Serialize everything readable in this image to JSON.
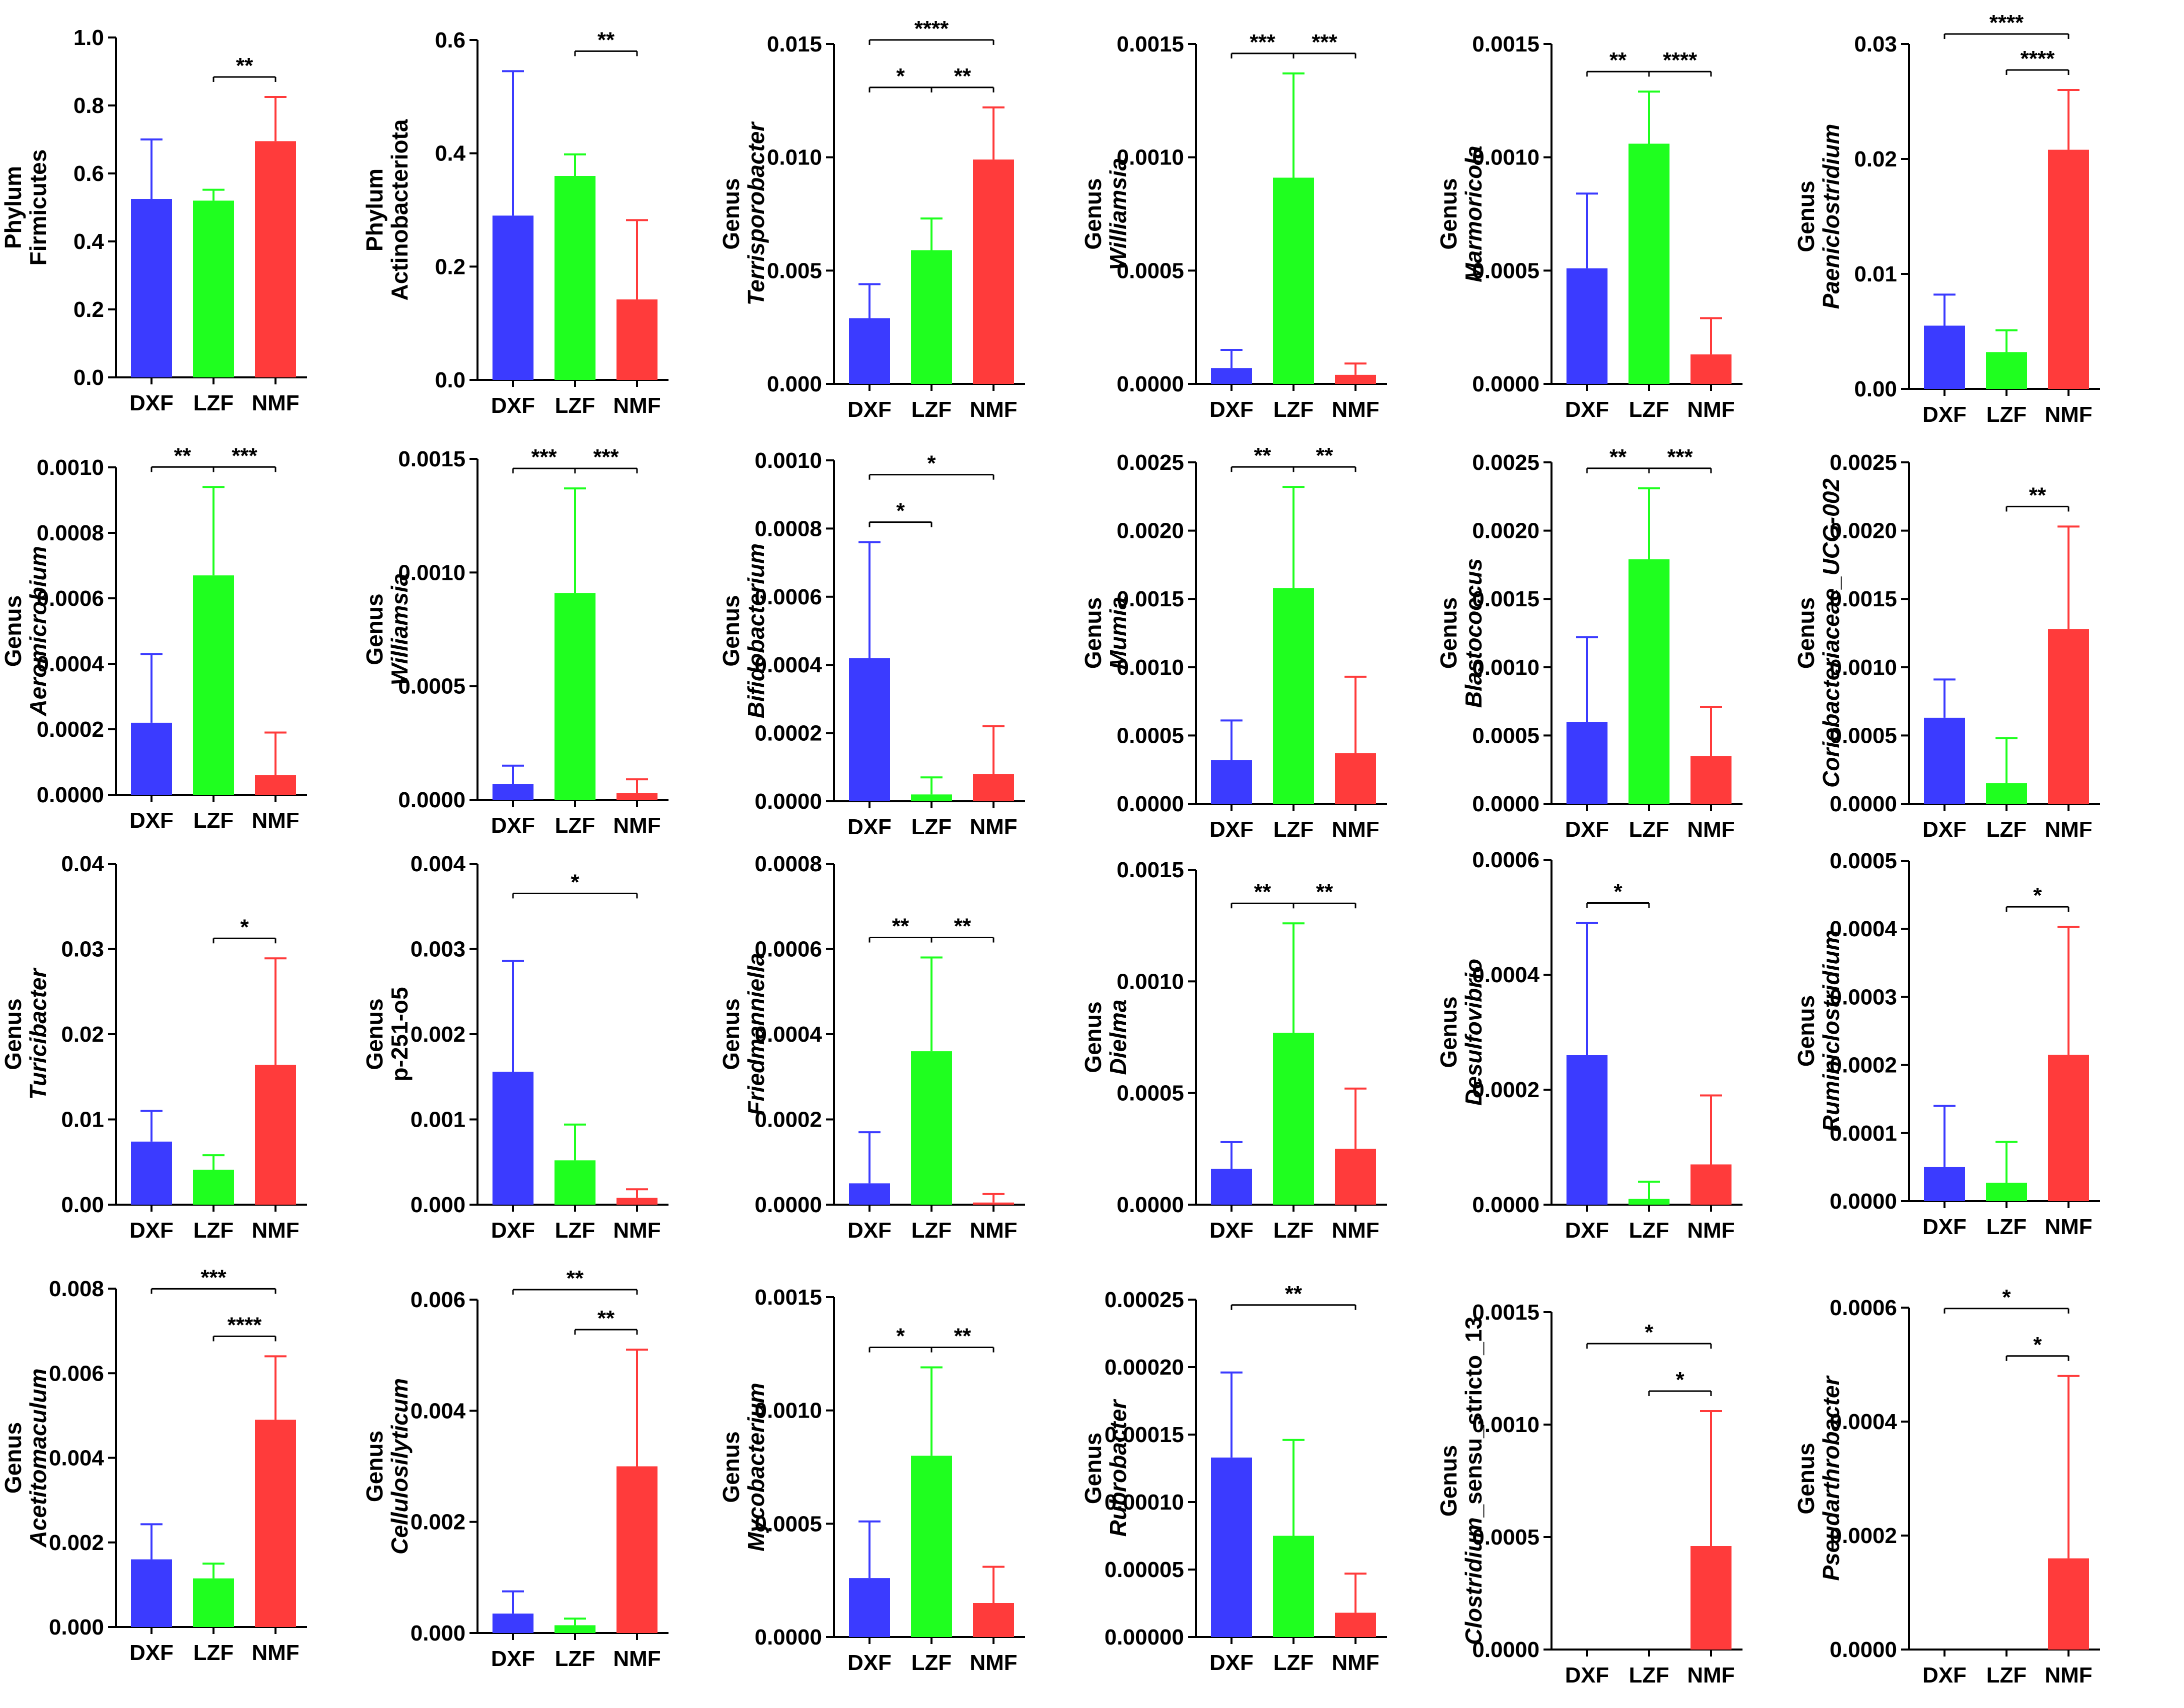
{
  "colors": {
    "DXF": "#3b3bff",
    "LZF": "#1fff1f",
    "NMF": "#ff3b3b",
    "axis": "#000000"
  },
  "chart_data": [
    {
      "type": "bar",
      "ylabel_prefix": "Phylum",
      "ylabel_main": "Firmicutes",
      "ylabel_main_italic": false,
      "categories": [
        "DXF",
        "LZF",
        "NMF"
      ],
      "values": [
        0.525,
        0.52,
        0.695
      ],
      "errors": [
        0.175,
        0.032,
        0.13
      ],
      "ylim": [
        0,
        1.0
      ],
      "ticks": [
        "0.0",
        "0.2",
        "0.4",
        "0.6",
        "0.8",
        "1.0"
      ],
      "sig": [
        {
          "from": 1,
          "to": 2,
          "label": "**"
        }
      ]
    },
    {
      "type": "bar",
      "ylabel_prefix": "Phylum",
      "ylabel_main": "Actinobacteriota",
      "ylabel_main_italic": false,
      "categories": [
        "DXF",
        "LZF",
        "NMF"
      ],
      "values": [
        0.29,
        0.36,
        0.142
      ],
      "errors": [
        0.255,
        0.038,
        0.14
      ],
      "ylim": [
        0,
        0.6
      ],
      "ticks": [
        "0.0",
        "0.2",
        "0.4",
        "0.6"
      ],
      "sig": [
        {
          "from": 1,
          "to": 2,
          "label": "**"
        }
      ]
    },
    {
      "type": "bar",
      "ylabel_prefix": "Genus",
      "ylabel_main": "Terrisporobacter",
      "ylabel_main_italic": true,
      "categories": [
        "DXF",
        "LZF",
        "NMF"
      ],
      "values": [
        0.0029,
        0.0059,
        0.0099
      ],
      "errors": [
        0.0015,
        0.0014,
        0.0023
      ],
      "ylim": [
        0,
        0.015
      ],
      "ticks": [
        "0.000",
        "0.005",
        "0.010",
        "0.015"
      ],
      "sig": [
        {
          "from": 0,
          "to": 1,
          "label": "*"
        },
        {
          "from": 1,
          "to": 2,
          "label": "**"
        },
        {
          "from": 0,
          "to": 2,
          "label": "****"
        }
      ]
    },
    {
      "type": "bar",
      "ylabel_prefix": "Genus",
      "ylabel_main": "Williamsia",
      "ylabel_main_italic": true,
      "categories": [
        "DXF",
        "LZF",
        "NMF"
      ],
      "values": [
        7e-05,
        0.00091,
        4e-05
      ],
      "errors": [
        8e-05,
        0.00046,
        5e-05
      ],
      "ylim": [
        0,
        0.0015
      ],
      "ticks": [
        "0.0000",
        "0.0005",
        "0.0010",
        "0.0015"
      ],
      "sig": [
        {
          "from": 0,
          "to": 1,
          "label": "***"
        },
        {
          "from": 1,
          "to": 2,
          "label": "***"
        }
      ]
    },
    {
      "type": "bar",
      "ylabel_prefix": "Genus",
      "ylabel_main": "Marmoricola",
      "ylabel_main_italic": true,
      "categories": [
        "DXF",
        "LZF",
        "NMF"
      ],
      "values": [
        0.00051,
        0.00106,
        0.00013
      ],
      "errors": [
        0.00033,
        0.00023,
        0.00016
      ],
      "ylim": [
        0,
        0.0015
      ],
      "ticks": [
        "0.0000",
        "0.0005",
        "0.0010",
        "0.0015"
      ],
      "sig": [
        {
          "from": 0,
          "to": 1,
          "label": "**"
        },
        {
          "from": 1,
          "to": 2,
          "label": "****"
        }
      ]
    },
    {
      "type": "bar",
      "ylabel_prefix": "Genus",
      "ylabel_main": "Paeniclostridium",
      "ylabel_main_italic": true,
      "categories": [
        "DXF",
        "LZF",
        "NMF"
      ],
      "values": [
        0.0055,
        0.0032,
        0.0208
      ],
      "errors": [
        0.0027,
        0.0019,
        0.0052
      ],
      "ylim": [
        0,
        0.03
      ],
      "ticks": [
        "0.00",
        "0.01",
        "0.02",
        "0.03"
      ],
      "sig": [
        {
          "from": 1,
          "to": 2,
          "label": "****"
        },
        {
          "from": 0,
          "to": 2,
          "label": "****"
        }
      ]
    },
    {
      "type": "bar",
      "ylabel_prefix": "Genus",
      "ylabel_main": "Aeromicrobium",
      "ylabel_main_italic": true,
      "categories": [
        "DXF",
        "LZF",
        "NMF"
      ],
      "values": [
        0.00022,
        0.00067,
        6e-05
      ],
      "errors": [
        0.00021,
        0.00027,
        0.00013
      ],
      "ylim": [
        0,
        0.001
      ],
      "ticks": [
        "0.0000",
        "0.0002",
        "0.0004",
        "0.0006",
        "0.0008",
        "0.0010"
      ],
      "sig": [
        {
          "from": 0,
          "to": 1,
          "label": "**"
        },
        {
          "from": 1,
          "to": 2,
          "label": "***"
        }
      ]
    },
    {
      "type": "bar",
      "ylabel_prefix": "Genus",
      "ylabel_main": "Williamsia",
      "ylabel_main_italic": true,
      "categories": [
        "DXF",
        "LZF",
        "NMF"
      ],
      "values": [
        7e-05,
        0.00091,
        3e-05
      ],
      "errors": [
        8e-05,
        0.00046,
        6e-05
      ],
      "ylim": [
        0,
        0.0015
      ],
      "ticks": [
        "0.0000",
        "0.0005",
        "0.0010",
        "0.0015"
      ],
      "sig": [
        {
          "from": 0,
          "to": 1,
          "label": "***"
        },
        {
          "from": 1,
          "to": 2,
          "label": "***"
        }
      ]
    },
    {
      "type": "bar",
      "ylabel_prefix": "Genus",
      "ylabel_main": "Bifidobacterium",
      "ylabel_main_italic": true,
      "categories": [
        "DXF",
        "LZF",
        "NMF"
      ],
      "values": [
        0.00042,
        2e-05,
        8e-05
      ],
      "errors": [
        0.00034,
        5e-05,
        0.00014
      ],
      "ylim": [
        0,
        0.001
      ],
      "ticks": [
        "0.0000",
        "0.0002",
        "0.0004",
        "0.0006",
        "0.0008",
        "0.0010"
      ],
      "sig": [
        {
          "from": 0,
          "to": 1,
          "label": "*"
        },
        {
          "from": 0,
          "to": 2,
          "label": "*"
        }
      ]
    },
    {
      "type": "bar",
      "ylabel_prefix": "Genus",
      "ylabel_main": "Mumia",
      "ylabel_main_italic": true,
      "categories": [
        "DXF",
        "LZF",
        "NMF"
      ],
      "values": [
        0.00032,
        0.00158,
        0.00037
      ],
      "errors": [
        0.00029,
        0.00074,
        0.00056
      ],
      "ylim": [
        0,
        0.0025
      ],
      "ticks": [
        "0.0000",
        "0.0005",
        "0.0010",
        "0.0015",
        "0.0020",
        "0.0025"
      ],
      "sig": [
        {
          "from": 0,
          "to": 1,
          "label": "**"
        },
        {
          "from": 1,
          "to": 2,
          "label": "**"
        }
      ]
    },
    {
      "type": "bar",
      "ylabel_prefix": "Genus",
      "ylabel_main": "Blastococcus",
      "ylabel_main_italic": true,
      "categories": [
        "DXF",
        "LZF",
        "NMF"
      ],
      "values": [
        0.0006,
        0.00179,
        0.00035
      ],
      "errors": [
        0.00062,
        0.00052,
        0.00036
      ],
      "ylim": [
        0,
        0.0025
      ],
      "ticks": [
        "0.0000",
        "0.0005",
        "0.0010",
        "0.0015",
        "0.0020",
        "0.0025"
      ],
      "sig": [
        {
          "from": 0,
          "to": 1,
          "label": "**"
        },
        {
          "from": 1,
          "to": 2,
          "label": "***"
        }
      ]
    },
    {
      "type": "bar",
      "ylabel_prefix": "Genus",
      "ylabel_main": "Coriobacteriaceae_UCG-002",
      "ylabel_main_italic": true,
      "categories": [
        "DXF",
        "LZF",
        "NMF"
      ],
      "values": [
        0.00063,
        0.00015,
        0.00128
      ],
      "errors": [
        0.00028,
        0.00033,
        0.00075
      ],
      "ylim": [
        0,
        0.0025
      ],
      "ticks": [
        "0.0000",
        "0.0005",
        "0.0010",
        "0.0015",
        "0.0020",
        "0.0025"
      ],
      "sig": [
        {
          "from": 1,
          "to": 2,
          "label": "**"
        }
      ]
    },
    {
      "type": "bar",
      "ylabel_prefix": "Genus",
      "ylabel_main": "Turicibacter",
      "ylabel_main_italic": true,
      "categories": [
        "DXF",
        "LZF",
        "NMF"
      ],
      "values": [
        0.0074,
        0.0041,
        0.0164
      ],
      "errors": [
        0.0036,
        0.0017,
        0.0125
      ],
      "ylim": [
        0,
        0.04
      ],
      "ticks": [
        "0.00",
        "0.01",
        "0.02",
        "0.03",
        "0.04"
      ],
      "sig": [
        {
          "from": 1,
          "to": 2,
          "label": "*"
        }
      ]
    },
    {
      "type": "bar",
      "ylabel_prefix": "Genus",
      "ylabel_main": "p-251-o5",
      "ylabel_main_italic": false,
      "categories": [
        "DXF",
        "LZF",
        "NMF"
      ],
      "values": [
        0.00156,
        0.00052,
        8e-05
      ],
      "errors": [
        0.0013,
        0.00042,
        0.0001
      ],
      "ylim": [
        0,
        0.004
      ],
      "ticks": [
        "0.000",
        "0.001",
        "0.002",
        "0.003",
        "0.004"
      ],
      "sig": [
        {
          "from": 0,
          "to": 2,
          "label": "*"
        }
      ]
    },
    {
      "type": "bar",
      "ylabel_prefix": "Genus",
      "ylabel_main": "Friedmanniella",
      "ylabel_main_italic": true,
      "categories": [
        "DXF",
        "LZF",
        "NMF"
      ],
      "values": [
        5e-05,
        0.00036,
        5e-06
      ],
      "errors": [
        0.00012,
        0.00022,
        2e-05
      ],
      "ylim": [
        0,
        0.0008
      ],
      "ticks": [
        "0.0000",
        "0.0002",
        "0.0004",
        "0.0006",
        "0.0008"
      ],
      "sig": [
        {
          "from": 0,
          "to": 1,
          "label": "**"
        },
        {
          "from": 1,
          "to": 2,
          "label": "**"
        }
      ]
    },
    {
      "type": "bar",
      "ylabel_prefix": "Genus",
      "ylabel_main": "Dielma",
      "ylabel_main_italic": true,
      "categories": [
        "DXF",
        "LZF",
        "NMF"
      ],
      "values": [
        0.00016,
        0.00077,
        0.00025
      ],
      "errors": [
        0.00012,
        0.00049,
        0.00027
      ],
      "ylim": [
        0,
        0.0015
      ],
      "ticks": [
        "0.0000",
        "0.0005",
        "0.0010",
        "0.0015"
      ],
      "sig": [
        {
          "from": 0,
          "to": 1,
          "label": "**"
        },
        {
          "from": 1,
          "to": 2,
          "label": "**"
        }
      ]
    },
    {
      "type": "bar",
      "ylabel_prefix": "Genus",
      "ylabel_main": "Desulfovibrio",
      "ylabel_main_italic": true,
      "categories": [
        "DXF",
        "LZF",
        "NMF"
      ],
      "values": [
        0.00026,
        1e-05,
        7e-05
      ],
      "errors": [
        0.00023,
        3e-05,
        0.00012
      ],
      "ylim": [
        0,
        0.0006
      ],
      "ticks": [
        "0.0000",
        "0.0002",
        "0.0004",
        "0.0006"
      ],
      "sig": [
        {
          "from": 0,
          "to": 1,
          "label": "*"
        }
      ]
    },
    {
      "type": "bar",
      "ylabel_prefix": "Genus",
      "ylabel_main": "Ruminiclostridium",
      "ylabel_main_italic": true,
      "categories": [
        "DXF",
        "LZF",
        "NMF"
      ],
      "values": [
        5e-05,
        2.7e-05,
        0.000215
      ],
      "errors": [
        9e-05,
        6e-05,
        0.000188
      ],
      "ylim": [
        0,
        0.0005
      ],
      "ticks": [
        "0.0000",
        "0.0001",
        "0.0002",
        "0.0003",
        "0.0004",
        "0.0005"
      ],
      "sig": [
        {
          "from": 1,
          "to": 2,
          "label": "*"
        }
      ]
    },
    {
      "type": "bar",
      "ylabel_prefix": "Genus",
      "ylabel_main": "Acetitomaculum",
      "ylabel_main_italic": true,
      "categories": [
        "DXF",
        "LZF",
        "NMF"
      ],
      "values": [
        0.0016,
        0.00115,
        0.0049
      ],
      "errors": [
        0.00083,
        0.00035,
        0.0015
      ],
      "ylim": [
        0,
        0.008
      ],
      "ticks": [
        "0.000",
        "0.002",
        "0.004",
        "0.006",
        "0.008"
      ],
      "sig": [
        {
          "from": 1,
          "to": 2,
          "label": "****"
        },
        {
          "from": 0,
          "to": 2,
          "label": "***"
        }
      ]
    },
    {
      "type": "bar",
      "ylabel_prefix": "Genus",
      "ylabel_main": "Cellulosilyticum",
      "ylabel_main_italic": true,
      "categories": [
        "DXF",
        "LZF",
        "NMF"
      ],
      "values": [
        0.00035,
        0.00014,
        0.003
      ],
      "errors": [
        0.0004,
        0.00012,
        0.0021
      ],
      "ylim": [
        0,
        0.006
      ],
      "ticks": [
        "0.000",
        "0.002",
        "0.004",
        "0.006"
      ],
      "sig": [
        {
          "from": 1,
          "to": 2,
          "label": "**"
        },
        {
          "from": 0,
          "to": 2,
          "label": "**"
        }
      ]
    },
    {
      "type": "bar",
      "ylabel_prefix": "Genus",
      "ylabel_main": "Mycobacterium",
      "ylabel_main_italic": true,
      "categories": [
        "DXF",
        "LZF",
        "NMF"
      ],
      "values": [
        0.00026,
        0.0008,
        0.00015
      ],
      "errors": [
        0.00025,
        0.00039,
        0.00016
      ],
      "ylim": [
        0,
        0.0015
      ],
      "ticks": [
        "0.0000",
        "0.0005",
        "0.0010",
        "0.0015"
      ],
      "sig": [
        {
          "from": 0,
          "to": 1,
          "label": "*"
        },
        {
          "from": 1,
          "to": 2,
          "label": "**"
        }
      ]
    },
    {
      "type": "bar",
      "ylabel_prefix": "Genus",
      "ylabel_main": "Rubrobacter",
      "ylabel_main_italic": true,
      "categories": [
        "DXF",
        "LZF",
        "NMF"
      ],
      "values": [
        0.000133,
        7.5e-05,
        1.8e-05
      ],
      "errors": [
        6.3e-05,
        7.1e-05,
        2.9e-05
      ],
      "ylim": [
        0,
        0.00025
      ],
      "ticks": [
        "0.00000",
        "0.00005",
        "0.00010",
        "0.00015",
        "0.00020",
        "0.00025"
      ],
      "sig": [
        {
          "from": 0,
          "to": 2,
          "label": "**"
        }
      ]
    },
    {
      "type": "bar",
      "ylabel_prefix": "Genus",
      "ylabel_main": "Clostridium",
      "ylabel_main_italic": true,
      "ylabel_suffix": "_sensu_stricto_13",
      "categories": [
        "DXF",
        "LZF",
        "NMF"
      ],
      "values": [
        0,
        0,
        0.00046
      ],
      "errors": [
        0,
        0,
        0.0006
      ],
      "ylim": [
        0,
        0.0015
      ],
      "ticks": [
        "0.0000",
        "0.0005",
        "0.0010",
        "0.0015"
      ],
      "sig": [
        {
          "from": 1,
          "to": 2,
          "label": "*"
        },
        {
          "from": 0,
          "to": 2,
          "label": "*"
        }
      ]
    },
    {
      "type": "bar",
      "ylabel_prefix": "Genus",
      "ylabel_main": "Pseudarthrobacter",
      "ylabel_main_italic": true,
      "categories": [
        "DXF",
        "LZF",
        "NMF"
      ],
      "values": [
        0,
        0,
        0.00016
      ],
      "errors": [
        0,
        0,
        0.00032
      ],
      "ylim": [
        0,
        0.0006
      ],
      "ticks": [
        "0.0000",
        "0.0002",
        "0.0004",
        "0.0006"
      ],
      "sig": [
        {
          "from": 1,
          "to": 2,
          "label": "*"
        },
        {
          "from": 0,
          "to": 2,
          "label": "*"
        }
      ]
    }
  ]
}
